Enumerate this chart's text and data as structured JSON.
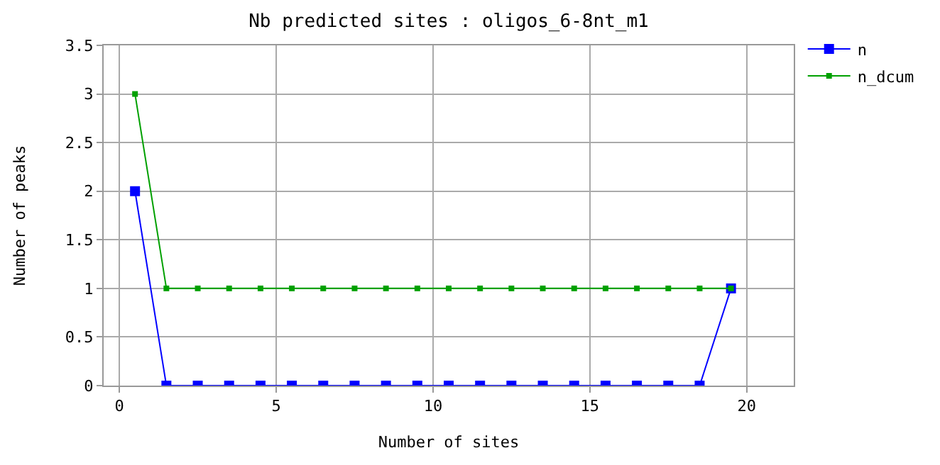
{
  "chart_data": {
    "type": "line",
    "title": "Nb predicted sites : oligos_6-8nt_m1",
    "xlabel": "Number of sites",
    "ylabel": "Number of peaks",
    "x": [
      0.5,
      1.5,
      2.5,
      3.5,
      4.5,
      5.5,
      6.5,
      7.5,
      8.5,
      9.5,
      10.5,
      11.5,
      12.5,
      13.5,
      14.5,
      15.5,
      16.5,
      17.5,
      18.5,
      19.5
    ],
    "series": [
      {
        "name": "n",
        "color": "#0000ff",
        "values": [
          2,
          0,
          0,
          0,
          0,
          0,
          0,
          0,
          0,
          0,
          0,
          0,
          0,
          0,
          0,
          0,
          0,
          0,
          0,
          1
        ]
      },
      {
        "name": "n_dcum",
        "color": "#00a000",
        "values": [
          3,
          1,
          1,
          1,
          1,
          1,
          1,
          1,
          1,
          1,
          1,
          1,
          1,
          1,
          1,
          1,
          1,
          1,
          1,
          1
        ]
      }
    ],
    "xlim": [
      -0.5,
      21.5
    ],
    "xticks": [
      0,
      5,
      10,
      15,
      20
    ],
    "ylim": [
      0,
      3.5
    ],
    "yticks": [
      0,
      0.5,
      1,
      1.5,
      2,
      2.5,
      3,
      3.5
    ],
    "grid": true,
    "legend": "top right",
    "marker": "square",
    "line_style": "solid"
  }
}
